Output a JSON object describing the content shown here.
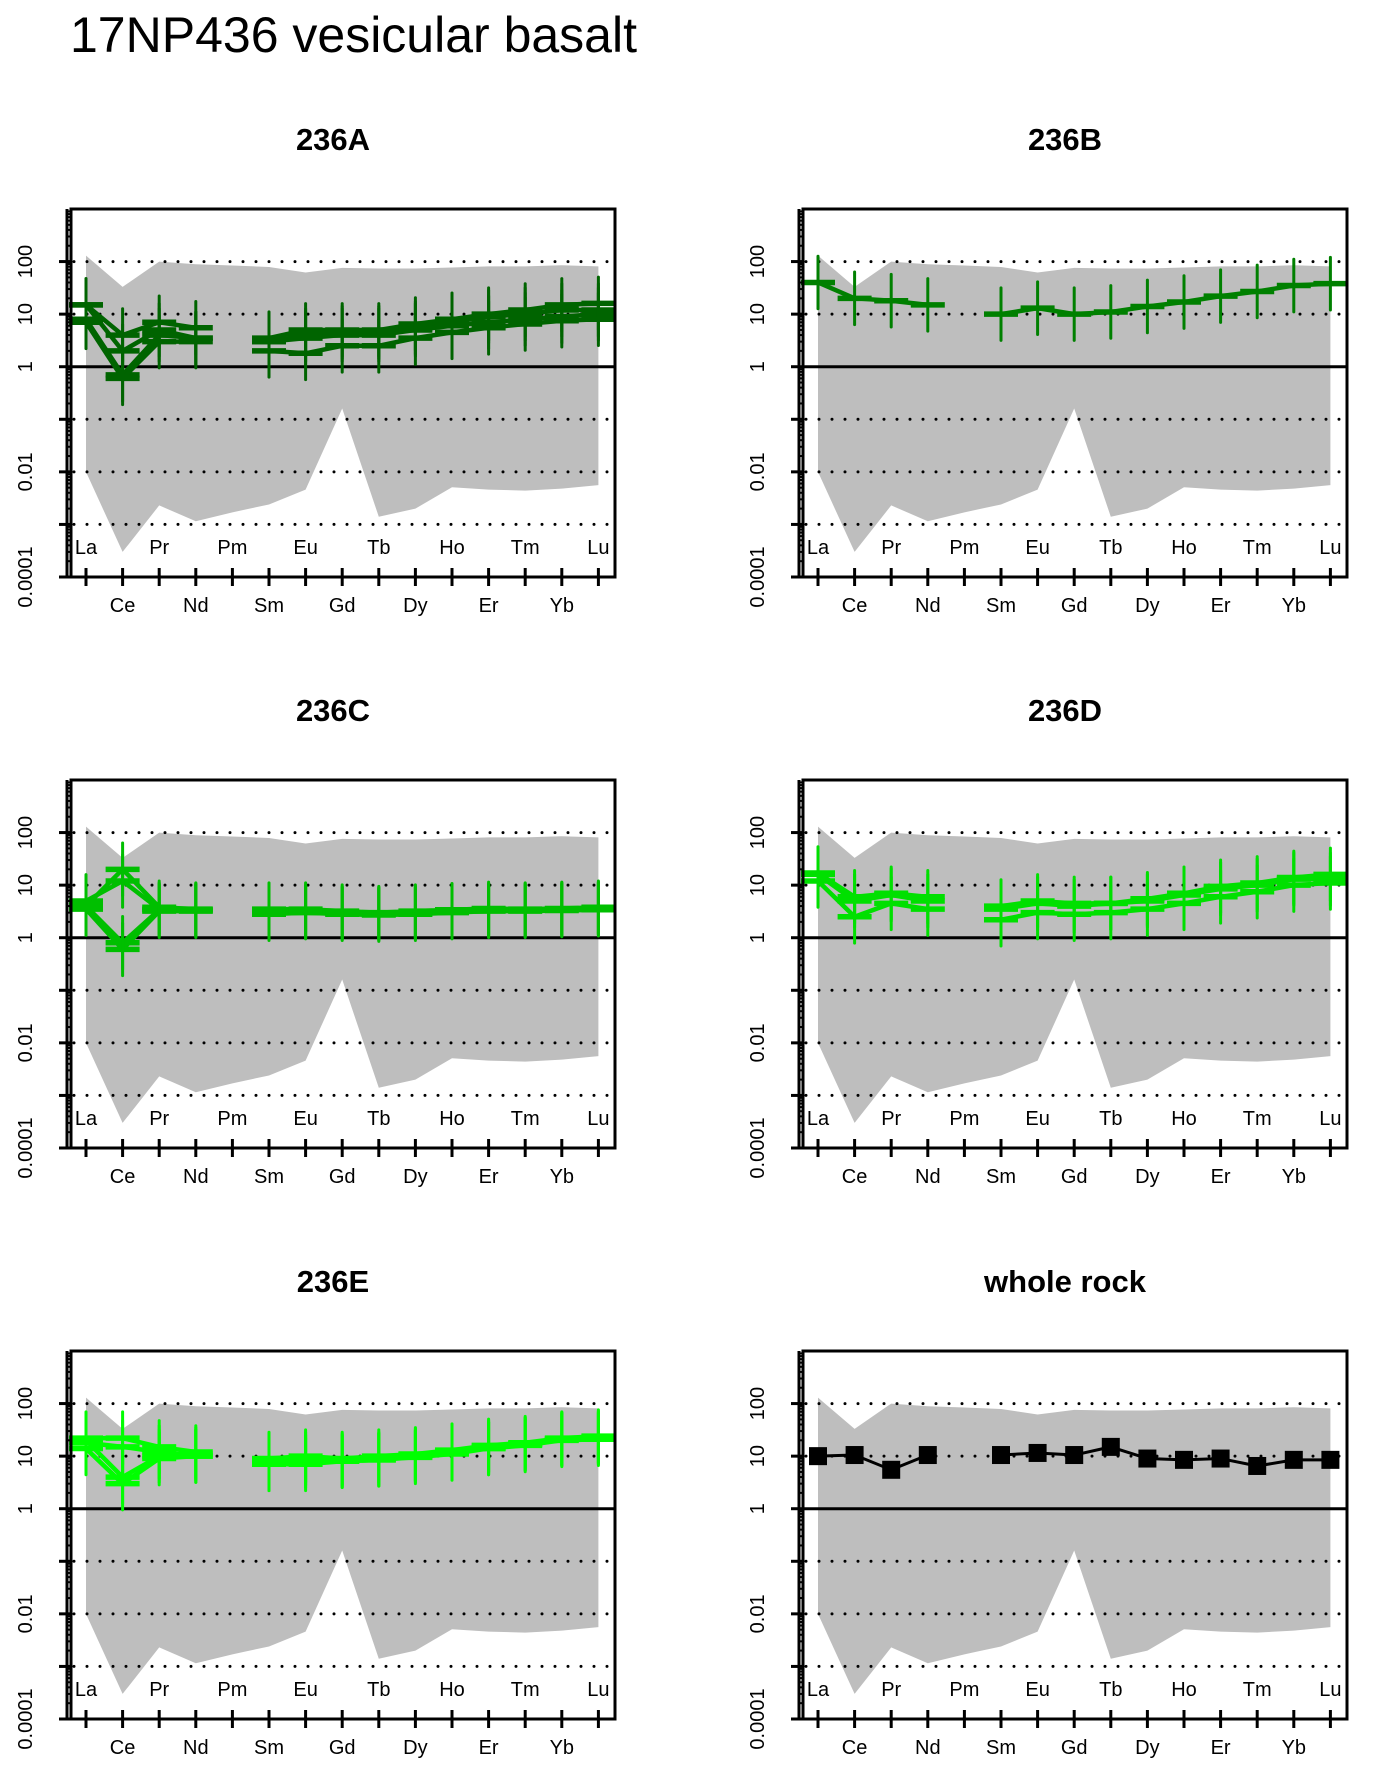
{
  "title": "17NP436 vesicular basalt",
  "chart_data": [
    {
      "type": "line",
      "title": "236A",
      "color": "#006400",
      "markers": "cross-errorbar",
      "categories": [
        "La",
        "Ce",
        "Pr",
        "Nd",
        "Pm",
        "Sm",
        "Eu",
        "Gd",
        "Tb",
        "Dy",
        "Ho",
        "Er",
        "Tm",
        "Yb",
        "Lu"
      ],
      "yscale": "log",
      "ylim": [
        0.0001,
        1000
      ],
      "ytick_values": [
        0.0001,
        0.01,
        1,
        10,
        100
      ],
      "ytick_labels": [
        "0.0001",
        "0.01",
        "1",
        "10",
        "100"
      ],
      "gridlines": [
        0.001,
        0.01,
        0.1,
        10,
        100
      ],
      "reference_line": 1,
      "envelope": {
        "upper": [
          130,
          33,
          100,
          89,
          84,
          79,
          62,
          76,
          74,
          74,
          77,
          81,
          81,
          85,
          81
        ],
        "lower": [
          0.01,
          0.0003,
          0.0023,
          0.00115,
          0.0017,
          0.0024,
          0.0046,
          0.16,
          0.0014,
          0.002,
          0.0051,
          0.0046,
          0.0044,
          0.0048,
          0.0056
        ]
      },
      "series": [
        {
          "values": [
            15,
            4,
            7,
            5.5,
            null,
            3.5,
            5,
            5,
            5,
            6.5,
            8,
            10,
            12,
            15,
            16
          ]
        },
        {
          "values": [
            15,
            2,
            5,
            3.5,
            null,
            3,
            4,
            4.5,
            4.5,
            5.5,
            7,
            9,
            10,
            12,
            12
          ]
        },
        {
          "values": [
            8,
            0.7,
            4,
            3.5,
            null,
            3,
            3.5,
            4,
            4,
            5,
            6,
            7,
            8,
            9,
            10
          ]
        },
        {
          "values": [
            7,
            0.6,
            3,
            3,
            null,
            2,
            1.8,
            2.5,
            2.5,
            3.5,
            4.5,
            5.5,
            6.5,
            7.5,
            8
          ]
        }
      ]
    },
    {
      "type": "line",
      "title": "236B",
      "color": "#008000",
      "markers": "cross-errorbar",
      "categories": [
        "La",
        "Ce",
        "Pr",
        "Nd",
        "Pm",
        "Sm",
        "Eu",
        "Gd",
        "Tb",
        "Dy",
        "Ho",
        "Er",
        "Tm",
        "Yb",
        "Lu"
      ],
      "yscale": "log",
      "ylim": [
        0.0001,
        1000
      ],
      "ytick_values": [
        0.0001,
        0.01,
        1,
        10,
        100
      ],
      "ytick_labels": [
        "0.0001",
        "0.01",
        "1",
        "10",
        "100"
      ],
      "gridlines": [
        0.001,
        0.01,
        0.1,
        10,
        100
      ],
      "reference_line": 1,
      "envelope": {
        "upper": [
          130,
          33,
          100,
          89,
          84,
          79,
          62,
          76,
          74,
          74,
          77,
          81,
          81,
          85,
          81
        ],
        "lower": [
          0.01,
          0.0003,
          0.0023,
          0.00115,
          0.0017,
          0.0024,
          0.0046,
          0.16,
          0.0014,
          0.002,
          0.0051,
          0.0046,
          0.0044,
          0.0048,
          0.0056
        ]
      },
      "series": [
        {
          "values": [
            40,
            20,
            18,
            15,
            null,
            10,
            13,
            10,
            11,
            14,
            17,
            22,
            27,
            35,
            38
          ]
        }
      ]
    },
    {
      "type": "line",
      "title": "236C",
      "color": "#00BF00",
      "markers": "cross-errorbar",
      "categories": [
        "La",
        "Ce",
        "Pr",
        "Nd",
        "Pm",
        "Sm",
        "Eu",
        "Gd",
        "Tb",
        "Dy",
        "Ho",
        "Er",
        "Tm",
        "Yb",
        "Lu"
      ],
      "yscale": "log",
      "ylim": [
        0.0001,
        1000
      ],
      "ytick_values": [
        0.0001,
        0.01,
        1,
        10,
        100
      ],
      "ytick_labels": [
        "0.0001",
        "0.01",
        "1",
        "10",
        "100"
      ],
      "gridlines": [
        0.001,
        0.01,
        0.1,
        10,
        100
      ],
      "reference_line": 1,
      "envelope": {
        "upper": [
          130,
          33,
          100,
          89,
          84,
          79,
          62,
          76,
          74,
          74,
          77,
          81,
          81,
          85,
          81
        ],
        "lower": [
          0.01,
          0.0003,
          0.0023,
          0.00115,
          0.0017,
          0.0024,
          0.0046,
          0.16,
          0.0014,
          0.002,
          0.0051,
          0.0046,
          0.0044,
          0.0048,
          0.0056
        ]
      },
      "series": [
        {
          "values": [
            4,
            20,
            3.8,
            3.5,
            null,
            3.5,
            3.5,
            3.2,
            3,
            3.2,
            3.4,
            3.6,
            3.5,
            3.6,
            3.8
          ]
        },
        {
          "values": [
            5,
            12,
            3.5,
            3.3,
            null,
            3.2,
            3.2,
            3,
            2.8,
            3,
            3.2,
            3.4,
            3.3,
            3.4,
            3.6
          ]
        },
        {
          "values": [
            3.5,
            0.6,
            3.2,
            3.2,
            null,
            2.8,
            3,
            2.8,
            2.7,
            2.8,
            3,
            3.2,
            3.2,
            3.3,
            3.4
          ]
        },
        {
          "values": [
            4,
            0.8,
            3.4,
            3.4,
            null,
            3,
            3.1,
            2.9,
            2.9,
            3,
            3.1,
            3.3,
            3.4,
            3.5,
            3.6
          ]
        }
      ]
    },
    {
      "type": "line",
      "title": "236D",
      "color": "#00E000",
      "markers": "cross-errorbar",
      "categories": [
        "La",
        "Ce",
        "Pr",
        "Nd",
        "Pm",
        "Sm",
        "Eu",
        "Gd",
        "Tb",
        "Dy",
        "Ho",
        "Er",
        "Tm",
        "Yb",
        "Lu"
      ],
      "yscale": "log",
      "ylim": [
        0.0001,
        1000
      ],
      "ytick_values": [
        0.0001,
        0.01,
        1,
        10,
        100
      ],
      "ytick_labels": [
        "0.0001",
        "0.01",
        "1",
        "10",
        "100"
      ],
      "gridlines": [
        0.001,
        0.01,
        0.1,
        10,
        100
      ],
      "reference_line": 1,
      "envelope": {
        "upper": [
          130,
          33,
          100,
          89,
          84,
          79,
          62,
          76,
          74,
          74,
          77,
          81,
          81,
          85,
          81
        ],
        "lower": [
          0.01,
          0.0003,
          0.0023,
          0.00115,
          0.0017,
          0.0024,
          0.0046,
          0.16,
          0.0014,
          0.002,
          0.0051,
          0.0046,
          0.0044,
          0.0048,
          0.0056
        ]
      },
      "series": [
        {
          "values": [
            17,
            6,
            7,
            6,
            null,
            4,
            5,
            4.5,
            4.5,
            5.5,
            7,
            9.5,
            11,
            14,
            16
          ]
        },
        {
          "values": [
            16,
            5,
            6.5,
            5,
            null,
            3.5,
            4.5,
            4,
            4.5,
            5,
            6.5,
            8.5,
            10,
            13,
            13
          ]
        },
        {
          "values": [
            12,
            2.5,
            4.5,
            3.5,
            null,
            2.2,
            3,
            2.8,
            3,
            3.5,
            4.5,
            6,
            7.5,
            10,
            11
          ]
        }
      ]
    },
    {
      "type": "line",
      "title": "236E",
      "color": "#00FF00",
      "markers": "cross-errorbar",
      "categories": [
        "La",
        "Ce",
        "Pr",
        "Nd",
        "Pm",
        "Sm",
        "Eu",
        "Gd",
        "Tb",
        "Dy",
        "Ho",
        "Er",
        "Tm",
        "Yb",
        "Lu"
      ],
      "yscale": "log",
      "ylim": [
        0.0001,
        1000
      ],
      "ytick_values": [
        0.0001,
        0.01,
        1,
        10,
        100
      ],
      "ytick_labels": [
        "0.0001",
        "0.01",
        "1",
        "10",
        "100"
      ],
      "gridlines": [
        0.001,
        0.01,
        0.1,
        10,
        100
      ],
      "reference_line": 1,
      "envelope": {
        "upper": [
          130,
          33,
          100,
          89,
          84,
          79,
          62,
          76,
          74,
          74,
          77,
          81,
          81,
          85,
          81
        ],
        "lower": [
          0.01,
          0.0003,
          0.0023,
          0.00115,
          0.0017,
          0.0024,
          0.0046,
          0.16,
          0.0014,
          0.002,
          0.0051,
          0.0046,
          0.0044,
          0.0048,
          0.0056
        ]
      },
      "series": [
        {
          "values": [
            22,
            22,
            15,
            12,
            null,
            9,
            10,
            9,
            10,
            11,
            13,
            16,
            18,
            22,
            24
          ]
        },
        {
          "values": [
            18,
            15,
            12,
            10,
            null,
            7,
            8,
            8,
            8.5,
            10,
            12,
            14,
            17,
            21,
            22
          ]
        },
        {
          "values": [
            14,
            3,
            9,
            10,
            null,
            7,
            7,
            8,
            8.5,
            9.5,
            11,
            14,
            16,
            20,
            21
          ]
        },
        {
          "values": [
            20,
            4,
            10,
            11,
            null,
            8,
            9,
            8.5,
            9,
            10.5,
            12,
            15,
            17,
            21,
            23
          ]
        }
      ]
    },
    {
      "type": "line",
      "title": "whole rock",
      "color": "#000000",
      "markers": "square",
      "categories": [
        "La",
        "Ce",
        "Pr",
        "Nd",
        "Pm",
        "Sm",
        "Eu",
        "Gd",
        "Tb",
        "Dy",
        "Ho",
        "Er",
        "Tm",
        "Yb",
        "Lu"
      ],
      "yscale": "log",
      "ylim": [
        0.0001,
        1000
      ],
      "ytick_values": [
        0.0001,
        0.01,
        1,
        10,
        100
      ],
      "ytick_labels": [
        "0.0001",
        "0.01",
        "1",
        "10",
        "100"
      ],
      "gridlines": [
        0.001,
        0.01,
        0.1,
        10,
        100
      ],
      "reference_line": 1,
      "envelope": {
        "upper": [
          130,
          33,
          100,
          89,
          84,
          79,
          62,
          76,
          74,
          74,
          77,
          81,
          81,
          85,
          81
        ],
        "lower": [
          0.01,
          0.0003,
          0.0023,
          0.00115,
          0.0017,
          0.0024,
          0.0046,
          0.16,
          0.0014,
          0.002,
          0.0051,
          0.0046,
          0.0044,
          0.0048,
          0.0056
        ]
      },
      "series": [
        {
          "values": [
            10,
            10.5,
            5.5,
            10.5,
            null,
            10.5,
            11.5,
            10.5,
            15,
            9,
            8.5,
            9,
            6.5,
            8.5,
            8.5
          ]
        }
      ]
    }
  ]
}
